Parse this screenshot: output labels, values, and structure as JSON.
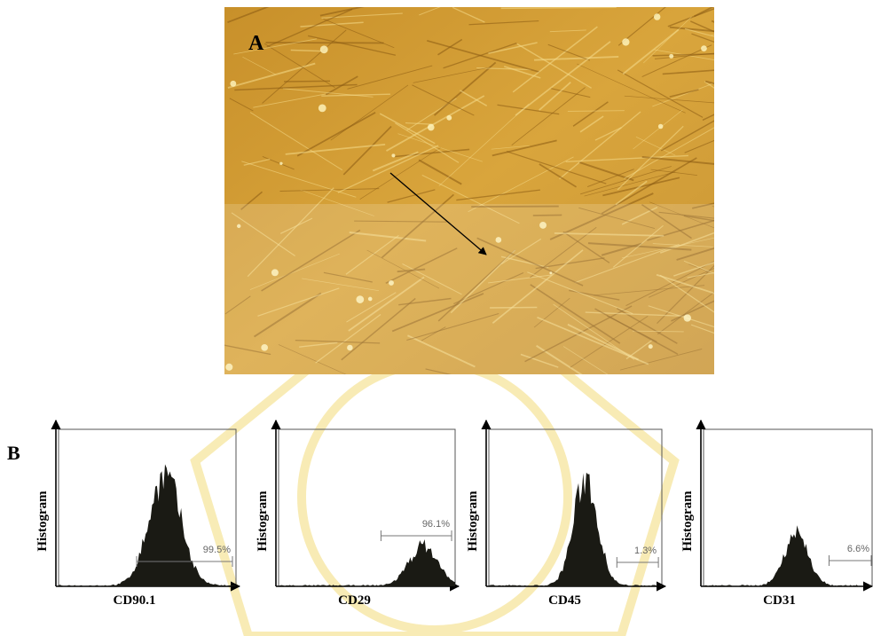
{
  "panel_a": {
    "label": "A"
  },
  "panel_b": {
    "label": "B",
    "plots": [
      {
        "y_label": "Histogram",
        "x_label": "CD90.1",
        "gate_label": "99.5%"
      },
      {
        "y_label": "Histogram",
        "x_label": "CD29",
        "gate_label": "96.1%"
      },
      {
        "y_label": "Histogram",
        "x_label": "CD45",
        "gate_label": "1.3%"
      },
      {
        "y_label": "Histogram",
        "x_label": "CD31",
        "gate_label": "6.6%"
      }
    ]
  }
}
